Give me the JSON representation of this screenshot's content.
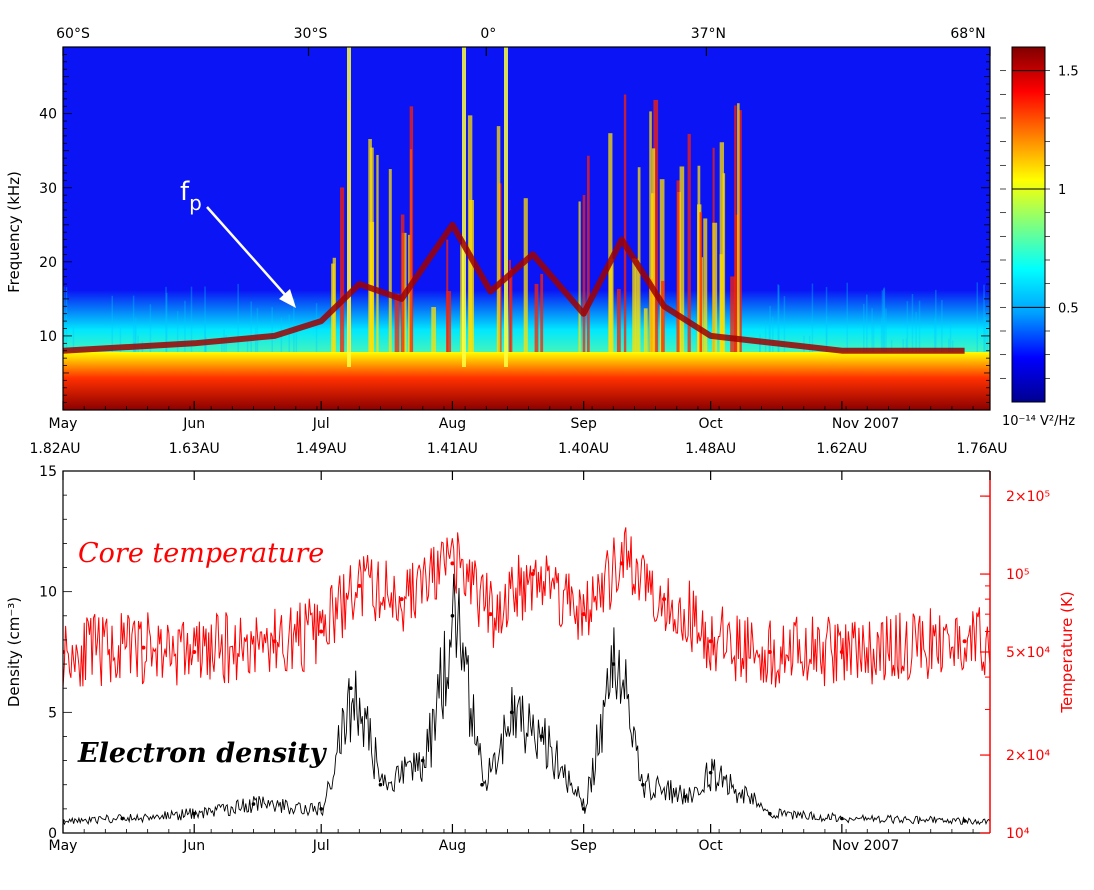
{
  "chart_data": [
    {
      "type": "heatmap",
      "title": "",
      "xlabel": "",
      "ylabel": "Frequency (kHz)",
      "ylim": [
        0,
        49
      ],
      "x_tick_labels": [
        "May",
        "Jun",
        "Jul",
        "Aug",
        "Sep",
        "Oct",
        "Nov 2007"
      ],
      "top_axis_labels": [
        "60°S",
        "30°S",
        "0°",
        "37°N",
        "68°N"
      ],
      "yticks": [
        10,
        20,
        30,
        40
      ],
      "colorbar": {
        "ticks": [
          0.5,
          1,
          1.5
        ],
        "unit_label": "10⁻¹⁴ V²/Hz",
        "range": [
          0.1,
          1.6
        ],
        "colors": [
          "#00008f",
          "#0000ff",
          "#00a0ff",
          "#00ffff",
          "#7fff7f",
          "#ffff00",
          "#ff8000",
          "#ff0000",
          "#800000"
        ]
      },
      "annotation": {
        "text": "f",
        "subscript": "p"
      },
      "plasma_line_khz": [
        {
          "date": "2007-05-01",
          "f": 8
        },
        {
          "date": "2007-06-01",
          "f": 9
        },
        {
          "date": "2007-06-20",
          "f": 10
        },
        {
          "date": "2007-07-01",
          "f": 12
        },
        {
          "date": "2007-07-10",
          "f": 17
        },
        {
          "date": "2007-07-20",
          "f": 15
        },
        {
          "date": "2007-08-01",
          "f": 25
        },
        {
          "date": "2007-08-10",
          "f": 16
        },
        {
          "date": "2007-08-20",
          "f": 21
        },
        {
          "date": "2007-09-01",
          "f": 13
        },
        {
          "date": "2007-09-10",
          "f": 23
        },
        {
          "date": "2007-09-20",
          "f": 14
        },
        {
          "date": "2007-10-01",
          "f": 10
        },
        {
          "date": "2007-11-01",
          "f": 8
        },
        {
          "date": "2007-11-30",
          "f": 8
        }
      ],
      "colors": {
        "background": "#0a14f5"
      }
    },
    {
      "type": "line",
      "title": "",
      "xlabel": "",
      "ylabel": "Density (cm⁻³)",
      "y2label": "Temperature (K)",
      "ylim": [
        0,
        15
      ],
      "y2lim_log": [
        10000,
        250000
      ],
      "x_tick_labels": [
        "May",
        "Jun",
        "Jul",
        "Aug",
        "Sep",
        "Oct",
        "Nov 2007"
      ],
      "top_axis_labels": [
        "1.82AU",
        "1.63AU",
        "1.49AU",
        "1.41AU",
        "1.40AU",
        "1.48AU",
        "1.62AU",
        "1.76AU"
      ],
      "yticks": [
        0,
        5,
        10,
        15
      ],
      "y2_tick_labels": [
        {
          "value": 10000,
          "label": "10⁴"
        },
        {
          "value": 20000,
          "label": "2×10⁴"
        },
        {
          "value": 50000,
          "label": "5×10⁴"
        },
        {
          "value": 100000,
          "label": "10⁵"
        },
        {
          "value": 200000,
          "label": "2×10⁵"
        }
      ],
      "series": [
        {
          "name": "Electron density",
          "color": "#000000",
          "points": [
            {
              "date": "2007-05-01",
              "y": 0.5
            },
            {
              "date": "2007-05-15",
              "y": 0.6
            },
            {
              "date": "2007-06-01",
              "y": 0.8
            },
            {
              "date": "2007-06-15",
              "y": 1.2
            },
            {
              "date": "2007-07-01",
              "y": 1.0
            },
            {
              "date": "2007-07-08",
              "y": 6.0
            },
            {
              "date": "2007-07-15",
              "y": 2.0
            },
            {
              "date": "2007-07-25",
              "y": 3.0
            },
            {
              "date": "2007-08-01",
              "y": 9.0
            },
            {
              "date": "2007-08-08",
              "y": 2.0
            },
            {
              "date": "2007-08-15",
              "y": 5.0
            },
            {
              "date": "2007-08-22",
              "y": 4.0
            },
            {
              "date": "2007-09-01",
              "y": 1.0
            },
            {
              "date": "2007-09-08",
              "y": 7.0
            },
            {
              "date": "2007-09-15",
              "y": 2.0
            },
            {
              "date": "2007-09-25",
              "y": 1.5
            },
            {
              "date": "2007-10-01",
              "y": 2.5
            },
            {
              "date": "2007-10-15",
              "y": 0.8
            },
            {
              "date": "2007-11-01",
              "y": 0.6
            },
            {
              "date": "2007-11-30",
              "y": 0.5
            }
          ]
        },
        {
          "name": "Core temperature",
          "color": "#ff0000",
          "points": [
            {
              "date": "2007-05-01",
              "y": 50000
            },
            {
              "date": "2007-05-20",
              "y": 52000
            },
            {
              "date": "2007-06-01",
              "y": 50000
            },
            {
              "date": "2007-06-20",
              "y": 55000
            },
            {
              "date": "2007-07-01",
              "y": 60000
            },
            {
              "date": "2007-07-10",
              "y": 90000
            },
            {
              "date": "2007-07-20",
              "y": 80000
            },
            {
              "date": "2007-08-01",
              "y": 110000
            },
            {
              "date": "2007-08-10",
              "y": 70000
            },
            {
              "date": "2007-08-20",
              "y": 100000
            },
            {
              "date": "2007-09-01",
              "y": 70000
            },
            {
              "date": "2007-09-10",
              "y": 110000
            },
            {
              "date": "2007-09-20",
              "y": 80000
            },
            {
              "date": "2007-10-01",
              "y": 55000
            },
            {
              "date": "2007-10-15",
              "y": 50000
            },
            {
              "date": "2007-11-01",
              "y": 50000
            },
            {
              "date": "2007-11-30",
              "y": 55000
            }
          ]
        }
      ]
    }
  ]
}
